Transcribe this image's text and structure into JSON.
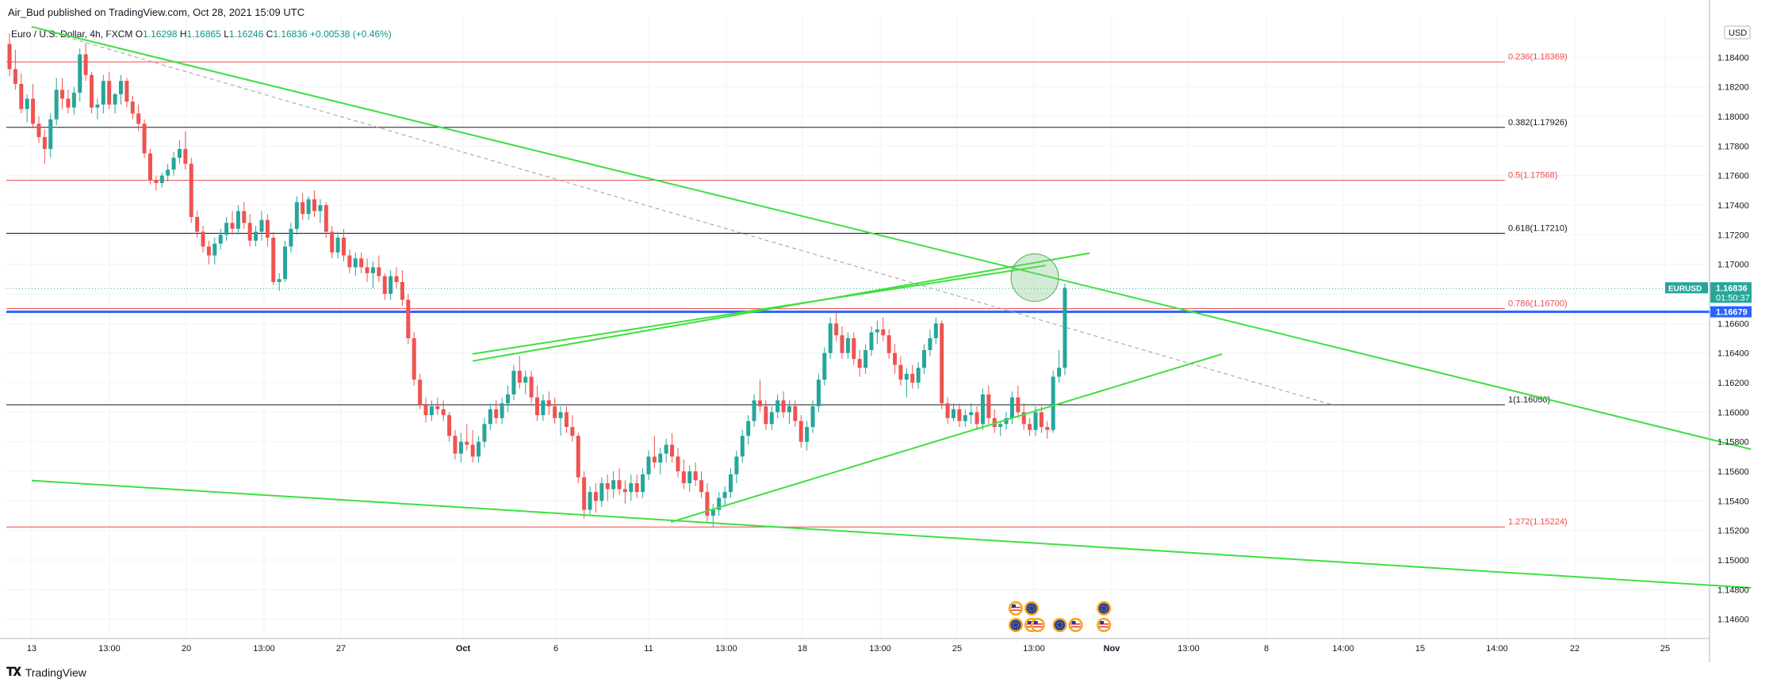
{
  "header": {
    "published": "Air_Bud published on TradingView.com, Oct 28, 2021 15:09 UTC"
  },
  "legend": {
    "symbol": "Euro / U.S. Dollar, 4h, FXCM",
    "open_label": "O",
    "open": "1.16298",
    "high_label": "H",
    "high": "1.16865",
    "low_label": "L",
    "low": "1.16246",
    "close_label": "C",
    "close": "1.16836",
    "change": "+0.00538 (+0.46%)"
  },
  "footer": {
    "brand": "TradingView"
  },
  "colors": {
    "up": "#26a69a",
    "down": "#ef5350",
    "trend": "#3de03d",
    "fib_red": "#ef4a4a",
    "fib_black": "#131722",
    "blue_line": "#2962ff"
  },
  "chart_data": {
    "type": "candlestick",
    "currency_label": "USD",
    "ylim": [
      1.1447,
      1.1868
    ],
    "y_ticks": [
      "1.18400",
      "1.18200",
      "1.18000",
      "1.17800",
      "1.17600",
      "1.17400",
      "1.17200",
      "1.17000",
      "1.16800",
      "1.16600",
      "1.16400",
      "1.16200",
      "1.16000",
      "1.15800",
      "1.15600",
      "1.15400",
      "1.15200",
      "1.15000",
      "1.14800",
      "1.14600"
    ],
    "x_ticks": [
      "13",
      "13:00",
      "20",
      "13:00",
      "27",
      "Oct",
      "6",
      "11",
      "13:00",
      "18",
      "13:00",
      "25",
      "13:00",
      "Nov",
      "13:00",
      "8",
      "14:00",
      "15",
      "14:00",
      "22",
      "25"
    ],
    "fib_levels": [
      {
        "ratio": "0.236",
        "label": "0.236(1.18369)",
        "price": 1.18369,
        "color": "red"
      },
      {
        "ratio": "0.382",
        "label": "0.382(1.17926)",
        "price": 1.17926,
        "color": "black"
      },
      {
        "ratio": "0.5",
        "label": "0.5(1.17568)",
        "price": 1.17568,
        "color": "red"
      },
      {
        "ratio": "0.618",
        "label": "0.618(1.17210)",
        "price": 1.1721,
        "color": "black"
      },
      {
        "ratio": "0.786",
        "label": "0.786(1.16700)",
        "price": 1.167,
        "color": "red"
      },
      {
        "ratio": "1",
        "label": "1(1.16050)",
        "price": 1.1605,
        "color": "black"
      },
      {
        "ratio": "1.272",
        "label": "1.272(1.15224)",
        "price": 1.15224,
        "color": "red"
      }
    ],
    "price_tags": [
      {
        "label": "EURUSD",
        "price": "1.16836",
        "countdown": "01:50:37",
        "value": 1.16836,
        "color": "#26a69a"
      },
      {
        "price": "1.16679",
        "value": 1.16679,
        "color": "#2962ff"
      }
    ],
    "candles_ohlc": [
      [
        1.1849,
        1.1856,
        1.1827,
        1.1832
      ],
      [
        1.1832,
        1.1845,
        1.1818,
        1.1822
      ],
      [
        1.1822,
        1.1829,
        1.1802,
        1.1805
      ],
      [
        1.1805,
        1.1815,
        1.1796,
        1.1812
      ],
      [
        1.1812,
        1.1822,
        1.1792,
        1.1795
      ],
      [
        1.1795,
        1.18,
        1.1782,
        1.1786
      ],
      [
        1.1786,
        1.1791,
        1.1768,
        1.1778
      ],
      [
        1.1778,
        1.1802,
        1.1772,
        1.1798
      ],
      [
        1.1798,
        1.1826,
        1.1794,
        1.1818
      ],
      [
        1.1818,
        1.1826,
        1.1805,
        1.1812
      ],
      [
        1.1812,
        1.1818,
        1.1802,
        1.1806
      ],
      [
        1.1806,
        1.182,
        1.1801,
        1.1816
      ],
      [
        1.1816,
        1.1846,
        1.181,
        1.1842
      ],
      [
        1.1842,
        1.185,
        1.1824,
        1.1828
      ],
      [
        1.1828,
        1.183,
        1.1802,
        1.1806
      ],
      [
        1.1806,
        1.1812,
        1.1798,
        1.1808
      ],
      [
        1.1808,
        1.1828,
        1.1802,
        1.1824
      ],
      [
        1.1824,
        1.183,
        1.1805,
        1.1808
      ],
      [
        1.1808,
        1.1816,
        1.1802,
        1.1815
      ],
      [
        1.1815,
        1.1828,
        1.1808,
        1.1824
      ],
      [
        1.1824,
        1.1826,
        1.1806,
        1.181
      ],
      [
        1.181,
        1.1814,
        1.1798,
        1.1802
      ],
      [
        1.1802,
        1.1808,
        1.179,
        1.1795
      ],
      [
        1.1795,
        1.1798,
        1.1772,
        1.1775
      ],
      [
        1.1775,
        1.1778,
        1.1754,
        1.1757
      ],
      [
        1.1757,
        1.176,
        1.175,
        1.1755
      ],
      [
        1.1755,
        1.1762,
        1.1752,
        1.176
      ],
      [
        1.176,
        1.1768,
        1.1756,
        1.1764
      ],
      [
        1.1764,
        1.1776,
        1.176,
        1.1772
      ],
      [
        1.1772,
        1.1784,
        1.1768,
        1.1778
      ],
      [
        1.1778,
        1.179,
        1.1764,
        1.1768
      ],
      [
        1.1768,
        1.1772,
        1.1728,
        1.1732
      ],
      [
        1.1732,
        1.1736,
        1.1718,
        1.1722
      ],
      [
        1.1722,
        1.1726,
        1.1708,
        1.1712
      ],
      [
        1.1712,
        1.1716,
        1.17,
        1.1706
      ],
      [
        1.1706,
        1.1718,
        1.17,
        1.1714
      ],
      [
        1.1714,
        1.1724,
        1.171,
        1.172
      ],
      [
        1.172,
        1.1732,
        1.1716,
        1.1728
      ],
      [
        1.1728,
        1.1736,
        1.172,
        1.1724
      ],
      [
        1.1724,
        1.174,
        1.172,
        1.1736
      ],
      [
        1.1736,
        1.1742,
        1.1724,
        1.1728
      ],
      [
        1.1728,
        1.1734,
        1.1712,
        1.1716
      ],
      [
        1.1716,
        1.1726,
        1.1712,
        1.1722
      ],
      [
        1.1722,
        1.1736,
        1.1716,
        1.173
      ],
      [
        1.173,
        1.1734,
        1.1712,
        1.1718
      ],
      [
        1.1718,
        1.1722,
        1.1686,
        1.1688
      ],
      [
        1.1688,
        1.1694,
        1.1682,
        1.169
      ],
      [
        1.169,
        1.1716,
        1.1688,
        1.1712
      ],
      [
        1.1712,
        1.1728,
        1.1708,
        1.1724
      ],
      [
        1.1724,
        1.1746,
        1.172,
        1.1742
      ],
      [
        1.1742,
        1.1748,
        1.173,
        1.1734
      ],
      [
        1.1734,
        1.1746,
        1.173,
        1.1744
      ],
      [
        1.1744,
        1.175,
        1.1732,
        1.1736
      ],
      [
        1.1736,
        1.1744,
        1.1728,
        1.174
      ],
      [
        1.174,
        1.1742,
        1.1718,
        1.1722
      ],
      [
        1.1722,
        1.1726,
        1.1704,
        1.1708
      ],
      [
        1.1708,
        1.1722,
        1.1704,
        1.1718
      ],
      [
        1.1718,
        1.1724,
        1.1702,
        1.1706
      ],
      [
        1.1706,
        1.171,
        1.1694,
        1.1698
      ],
      [
        1.1698,
        1.1708,
        1.1692,
        1.1704
      ],
      [
        1.1704,
        1.1708,
        1.1694,
        1.1698
      ],
      [
        1.1698,
        1.1704,
        1.1688,
        1.1694
      ],
      [
        1.1694,
        1.1702,
        1.1684,
        1.1698
      ],
      [
        1.1698,
        1.1706,
        1.1688,
        1.1692
      ],
      [
        1.1692,
        1.1694,
        1.1676,
        1.168
      ],
      [
        1.168,
        1.1696,
        1.1676,
        1.1692
      ],
      [
        1.1692,
        1.1698,
        1.1684,
        1.1688
      ],
      [
        1.1688,
        1.1696,
        1.1672,
        1.1676
      ],
      [
        1.1676,
        1.168,
        1.1646,
        1.165
      ],
      [
        1.165,
        1.1654,
        1.1618,
        1.1622
      ],
      [
        1.1622,
        1.1626,
        1.1602,
        1.1605
      ],
      [
        1.1605,
        1.161,
        1.1593,
        1.1598
      ],
      [
        1.1598,
        1.1608,
        1.1594,
        1.1604
      ],
      [
        1.1604,
        1.161,
        1.1598,
        1.1602
      ],
      [
        1.1602,
        1.1608,
        1.1594,
        1.1598
      ],
      [
        1.1598,
        1.16,
        1.158,
        1.1584
      ],
      [
        1.1584,
        1.1588,
        1.1568,
        1.1572
      ],
      [
        1.1572,
        1.1586,
        1.1566,
        1.158
      ],
      [
        1.158,
        1.1592,
        1.1574,
        1.1578
      ],
      [
        1.1578,
        1.1588,
        1.1566,
        1.157
      ],
      [
        1.157,
        1.1584,
        1.1566,
        1.158
      ],
      [
        1.158,
        1.1596,
        1.1576,
        1.1592
      ],
      [
        1.1592,
        1.1606,
        1.1588,
        1.1602
      ],
      [
        1.1602,
        1.1608,
        1.1592,
        1.1596
      ],
      [
        1.1596,
        1.161,
        1.1592,
        1.1606
      ],
      [
        1.1606,
        1.1618,
        1.16,
        1.1612
      ],
      [
        1.1612,
        1.1632,
        1.1608,
        1.1628
      ],
      [
        1.1628,
        1.1638,
        1.1616,
        1.162
      ],
      [
        1.162,
        1.1628,
        1.1612,
        1.1624
      ],
      [
        1.1624,
        1.1628,
        1.1606,
        1.161
      ],
      [
        1.161,
        1.1618,
        1.1594,
        1.1598
      ],
      [
        1.1598,
        1.1612,
        1.1594,
        1.1608
      ],
      [
        1.1608,
        1.1614,
        1.1598,
        1.1604
      ],
      [
        1.1604,
        1.161,
        1.1592,
        1.1596
      ],
      [
        1.1596,
        1.1604,
        1.1584,
        1.16
      ],
      [
        1.16,
        1.1604,
        1.1586,
        1.159
      ],
      [
        1.159,
        1.1598,
        1.158,
        1.1584
      ],
      [
        1.1584,
        1.1586,
        1.1552,
        1.1556
      ],
      [
        1.1556,
        1.156,
        1.1528,
        1.1534
      ],
      [
        1.1534,
        1.155,
        1.153,
        1.1546
      ],
      [
        1.1546,
        1.1552,
        1.1532,
        1.154
      ],
      [
        1.154,
        1.1556,
        1.1536,
        1.1552
      ],
      [
        1.1552,
        1.1558,
        1.154,
        1.1548
      ],
      [
        1.1548,
        1.156,
        1.1542,
        1.1554
      ],
      [
        1.1554,
        1.1562,
        1.1544,
        1.1548
      ],
      [
        1.1548,
        1.1554,
        1.1538,
        1.1546
      ],
      [
        1.1546,
        1.1558,
        1.154,
        1.1552
      ],
      [
        1.1552,
        1.1558,
        1.1542,
        1.1546
      ],
      [
        1.1546,
        1.1562,
        1.1542,
        1.1558
      ],
      [
        1.1558,
        1.1574,
        1.1554,
        1.157
      ],
      [
        1.157,
        1.1584,
        1.1562,
        1.1566
      ],
      [
        1.1566,
        1.1576,
        1.1558,
        1.1572
      ],
      [
        1.1572,
        1.1582,
        1.1566,
        1.1578
      ],
      [
        1.1578,
        1.1586,
        1.1566,
        1.157
      ],
      [
        1.157,
        1.1576,
        1.1556,
        1.156
      ],
      [
        1.156,
        1.1568,
        1.1548,
        1.1552
      ],
      [
        1.1552,
        1.1564,
        1.1546,
        1.156
      ],
      [
        1.156,
        1.1566,
        1.155,
        1.1554
      ],
      [
        1.1554,
        1.156,
        1.1542,
        1.1546
      ],
      [
        1.1546,
        1.1552,
        1.1526,
        1.153
      ],
      [
        1.153,
        1.1538,
        1.1522,
        1.1534
      ],
      [
        1.1534,
        1.1546,
        1.153,
        1.1542
      ],
      [
        1.1542,
        1.155,
        1.1536,
        1.1546
      ],
      [
        1.1546,
        1.1562,
        1.1542,
        1.1558
      ],
      [
        1.1558,
        1.1574,
        1.1552,
        1.157
      ],
      [
        1.157,
        1.1588,
        1.1566,
        1.1584
      ],
      [
        1.1584,
        1.1598,
        1.1578,
        1.1594
      ],
      [
        1.1594,
        1.1612,
        1.159,
        1.1608
      ],
      [
        1.1608,
        1.1622,
        1.16,
        1.1604
      ],
      [
        1.1604,
        1.1608,
        1.1588,
        1.1592
      ],
      [
        1.1592,
        1.1604,
        1.1588,
        1.16
      ],
      [
        1.16,
        1.1612,
        1.1596,
        1.1608
      ],
      [
        1.1608,
        1.1614,
        1.1596,
        1.16
      ],
      [
        1.16,
        1.1608,
        1.1592,
        1.1604
      ],
      [
        1.1604,
        1.1608,
        1.159,
        1.1594
      ],
      [
        1.1594,
        1.1598,
        1.1576,
        1.158
      ],
      [
        1.158,
        1.1594,
        1.1574,
        1.159
      ],
      [
        1.159,
        1.1608,
        1.1586,
        1.1604
      ],
      [
        1.1604,
        1.1626,
        1.16,
        1.1622
      ],
      [
        1.1622,
        1.1644,
        1.1618,
        1.164
      ],
      [
        1.164,
        1.1664,
        1.1636,
        1.166
      ],
      [
        1.166,
        1.1668,
        1.1648,
        1.1652
      ],
      [
        1.1652,
        1.1658,
        1.1636,
        1.164
      ],
      [
        1.164,
        1.1654,
        1.1636,
        1.165
      ],
      [
        1.165,
        1.1654,
        1.1632,
        1.1636
      ],
      [
        1.1636,
        1.1642,
        1.1624,
        1.163
      ],
      [
        1.163,
        1.1646,
        1.1626,
        1.1642
      ],
      [
        1.1642,
        1.1658,
        1.1638,
        1.1654
      ],
      [
        1.1654,
        1.1662,
        1.1646,
        1.1656
      ],
      [
        1.1656,
        1.1664,
        1.1648,
        1.1652
      ],
      [
        1.1652,
        1.1656,
        1.1636,
        1.164
      ],
      [
        1.164,
        1.1646,
        1.1626,
        1.1632
      ],
      [
        1.1632,
        1.1638,
        1.1618,
        1.1622
      ],
      [
        1.1622,
        1.163,
        1.161,
        1.1626
      ],
      [
        1.1626,
        1.1632,
        1.1616,
        1.162
      ],
      [
        1.162,
        1.1634,
        1.1616,
        1.163
      ],
      [
        1.163,
        1.1646,
        1.1626,
        1.1642
      ],
      [
        1.1642,
        1.1656,
        1.1638,
        1.165
      ],
      [
        1.165,
        1.1664,
        1.1646,
        1.166
      ],
      [
        1.166,
        1.1662,
        1.1602,
        1.1606
      ],
      [
        1.1606,
        1.161,
        1.1592,
        1.1596
      ],
      [
        1.1596,
        1.1606,
        1.1594,
        1.1602
      ],
      [
        1.1602,
        1.1606,
        1.159,
        1.1594
      ],
      [
        1.1594,
        1.1602,
        1.159,
        1.1598
      ],
      [
        1.1598,
        1.1606,
        1.1592,
        1.16
      ],
      [
        1.16,
        1.1604,
        1.1588,
        1.1592
      ],
      [
        1.1592,
        1.1616,
        1.1588,
        1.1612
      ],
      [
        1.1612,
        1.1618,
        1.1592,
        1.1596
      ],
      [
        1.1596,
        1.1602,
        1.1586,
        1.159
      ],
      [
        1.159,
        1.1594,
        1.1584,
        1.1592
      ],
      [
        1.1592,
        1.16,
        1.1588,
        1.1596
      ],
      [
        1.1596,
        1.1614,
        1.1592,
        1.161
      ],
      [
        1.161,
        1.1618,
        1.1596,
        1.16
      ],
      [
        1.16,
        1.1606,
        1.1588,
        1.1592
      ],
      [
        1.1592,
        1.1596,
        1.1584,
        1.1588
      ],
      [
        1.1588,
        1.1604,
        1.1584,
        1.16
      ],
      [
        1.16,
        1.1604,
        1.1586,
        1.159
      ],
      [
        1.159,
        1.1594,
        1.1582,
        1.1588
      ],
      [
        1.1588,
        1.1628,
        1.1586,
        1.1624
      ],
      [
        1.1624,
        1.1642,
        1.162,
        1.163
      ],
      [
        1.163,
        1.1687,
        1.1625,
        1.1684
      ]
    ],
    "markers": [
      {
        "name": "support-upper-lower-channel",
        "from": [
          "2021-10-03",
          1.16394
        ],
        "to": [
          "2021-10-29",
          1.16992
        ]
      },
      {
        "name": "channel-top",
        "from": [
          "2021-10-03",
          1.16346
        ],
        "to": [
          "2021-10-31",
          1.17076
        ]
      },
      {
        "name": "rising-support",
        "from": [
          "2021-10-12",
          1.15257
        ],
        "to": [
          "2021-11-06",
          1.16393
        ]
      },
      {
        "name": "descending-trend",
        "from": [
          "2021-09-13",
          1.18606
        ],
        "to": [
          "2021-11-30",
          1.15749
        ]
      },
      {
        "name": "dashed-trend",
        "from": [
          "2021-09-13",
          1.18606
        ],
        "to": [
          "2021-11-11",
          1.1605
        ]
      },
      {
        "name": "lower-channel",
        "from": [
          "2021-09-13",
          1.15538
        ],
        "to": [
          "2021-11-30",
          1.14813
        ]
      },
      {
        "name": "highlight-circle",
        "at": [
          "2021-10-28",
          1.1691
        ]
      }
    ],
    "events": [
      {
        "date": "2021-10-28",
        "flags": [
          "USD",
          "EUR"
        ],
        "row": "top"
      },
      {
        "date": "2021-10-28",
        "flags": [
          "EUR",
          "USD"
        ],
        "row": "bottom"
      },
      {
        "date": "2021-10-29",
        "flags": [
          "USD"
        ],
        "row": "bottom"
      },
      {
        "date": "2021-10-30",
        "flags": [
          "EUR",
          "USD"
        ],
        "row": "bottom"
      },
      {
        "date": "2021-11-01",
        "flags": [
          "EUR"
        ],
        "row": "top"
      },
      {
        "date": "2021-11-01",
        "flags": [
          "USD"
        ],
        "row": "bottom"
      }
    ]
  }
}
